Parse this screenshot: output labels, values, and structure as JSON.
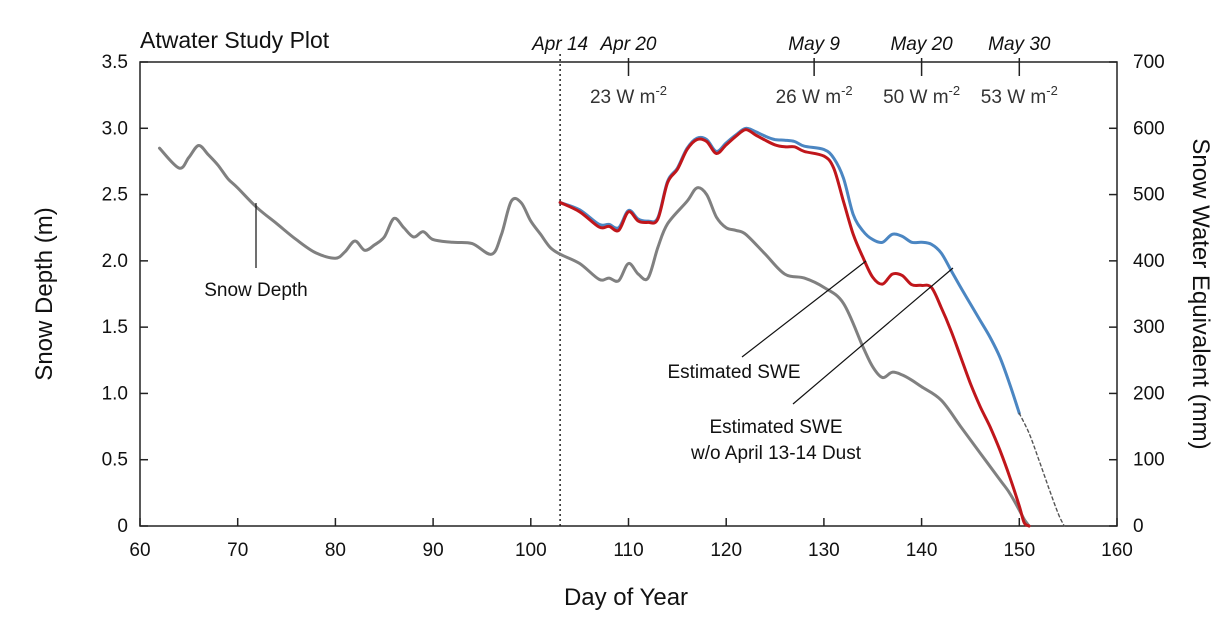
{
  "chart_data": {
    "type": "line",
    "title": "Atwater Study Plot",
    "xlabel": "Day of Year",
    "ylabel": "Snow Depth (m)",
    "y2label": "Snow Water Equivalent (mm)",
    "xlim": [
      60,
      160
    ],
    "ylim": [
      0,
      3.5
    ],
    "y2lim": [
      0,
      700
    ],
    "xticks": [
      60,
      70,
      80,
      90,
      100,
      110,
      120,
      130,
      140,
      150,
      160
    ],
    "yticks": [
      0,
      0.5,
      1.0,
      1.5,
      2.0,
      2.5,
      3.0,
      3.5
    ],
    "ytick_labels": [
      "0",
      "0.5",
      "1.0",
      "1.5",
      "2.0",
      "2.5",
      "3.0",
      "3.5"
    ],
    "y2ticks": [
      0,
      100,
      200,
      300,
      400,
      500,
      600,
      700
    ],
    "y2tick_labels": [
      "0",
      "100",
      "200",
      "300",
      "400",
      "500",
      "600",
      "700"
    ],
    "grid": false,
    "dust_event": {
      "day": 103,
      "label": "Apr 14"
    },
    "date_markers": [
      {
        "label": "Apr 20",
        "day": 110,
        "flux": "23 W m",
        "unit_sup": "-2"
      },
      {
        "label": "May 9",
        "day": 129,
        "flux": "26 W m",
        "unit_sup": "-2"
      },
      {
        "label": "May 20",
        "day": 140,
        "flux": "50 W m",
        "unit_sup": "-2"
      },
      {
        "label": "May 30",
        "day": 150,
        "flux": "53 W m",
        "unit_sup": "-2"
      }
    ],
    "annotations": {
      "snow_depth": "Snow Depth",
      "swe": "Estimated SWE",
      "swe_nodust_line1": "Estimated SWE",
      "swe_nodust_line2": "w/o April 13-14 Dust"
    },
    "series": [
      {
        "name": "Snow Depth",
        "axis": "left",
        "color": "#808080",
        "x": [
          62,
          64,
          65,
          66,
          67,
          68,
          69,
          70,
          72,
          74,
          76,
          78,
          80,
          81,
          82,
          83,
          84,
          85,
          86,
          87,
          88,
          89,
          90,
          92,
          94,
          96,
          97,
          98,
          99,
          100,
          101,
          102,
          103,
          105,
          107,
          108,
          109,
          110,
          111,
          112,
          113,
          114,
          116,
          117,
          118,
          119,
          120,
          121,
          122,
          124,
          126,
          128,
          130,
          132,
          134,
          135,
          136,
          137,
          138,
          139,
          140,
          142,
          144,
          146,
          148,
          149,
          150,
          150.5,
          151
        ],
        "y": [
          2.85,
          2.7,
          2.78,
          2.87,
          2.8,
          2.72,
          2.62,
          2.55,
          2.4,
          2.28,
          2.16,
          2.06,
          2.02,
          2.07,
          2.15,
          2.08,
          2.12,
          2.18,
          2.32,
          2.25,
          2.18,
          2.22,
          2.16,
          2.14,
          2.13,
          2.05,
          2.2,
          2.45,
          2.44,
          2.3,
          2.2,
          2.1,
          2.05,
          1.98,
          1.86,
          1.87,
          1.85,
          1.98,
          1.9,
          1.87,
          2.1,
          2.28,
          2.45,
          2.55,
          2.5,
          2.33,
          2.25,
          2.23,
          2.2,
          2.05,
          1.9,
          1.87,
          1.8,
          1.68,
          1.35,
          1.2,
          1.12,
          1.16,
          1.14,
          1.1,
          1.05,
          0.95,
          0.75,
          0.55,
          0.35,
          0.25,
          0.12,
          0.05,
          0.0
        ]
      },
      {
        "name": "Estimated SWE w/o April 13-14 Dust",
        "axis": "right",
        "color": "#4b86c2",
        "x": [
          103,
          105,
          107,
          108,
          109,
          110,
          111,
          112,
          113,
          114,
          115,
          116,
          117,
          118,
          119,
          120,
          121,
          122,
          123,
          124,
          125,
          126,
          127,
          128,
          130,
          131,
          132,
          133,
          134,
          135,
          136,
          137,
          138,
          139,
          140,
          141,
          142,
          143,
          144,
          145,
          146,
          147,
          148,
          149,
          150
        ],
        "y": [
          488,
          477,
          455,
          455,
          450,
          476,
          463,
          460,
          465,
          520,
          540,
          570,
          585,
          583,
          565,
          578,
          590,
          600,
          595,
          588,
          583,
          582,
          580,
          573,
          568,
          555,
          525,
          470,
          445,
          432,
          428,
          440,
          437,
          428,
          428,
          425,
          412,
          386,
          360,
          335,
          310,
          285,
          255,
          215,
          170
        ]
      },
      {
        "name": "Estimated SWE",
        "axis": "right",
        "color": "#c0161b",
        "x": [
          103,
          105,
          107,
          108,
          109,
          110,
          111,
          112,
          113,
          114,
          115,
          116,
          117,
          118,
          119,
          120,
          121,
          122,
          123,
          124,
          125,
          126,
          127,
          128,
          130,
          131,
          132,
          133,
          134,
          135,
          136,
          137,
          138,
          139,
          140,
          141,
          142,
          143,
          144,
          145,
          146,
          147,
          148,
          149,
          150,
          150.5,
          151
        ],
        "y": [
          488,
          474,
          451,
          452,
          446,
          474,
          460,
          458,
          463,
          518,
          538,
          568,
          583,
          580,
          562,
          575,
          588,
          598,
          590,
          582,
          575,
          572,
          572,
          565,
          558,
          540,
          490,
          440,
          405,
          375,
          365,
          380,
          378,
          364,
          363,
          360,
          330,
          295,
          255,
          215,
          180,
          150,
          115,
          75,
          30,
          5,
          0
        ]
      },
      {
        "name": "SWE projection",
        "axis": "right",
        "color": "#555555",
        "dashed": true,
        "x": [
          150,
          151,
          152,
          153,
          154,
          154.6
        ],
        "y": [
          170,
          140,
          100,
          58,
          18,
          0
        ]
      }
    ]
  }
}
